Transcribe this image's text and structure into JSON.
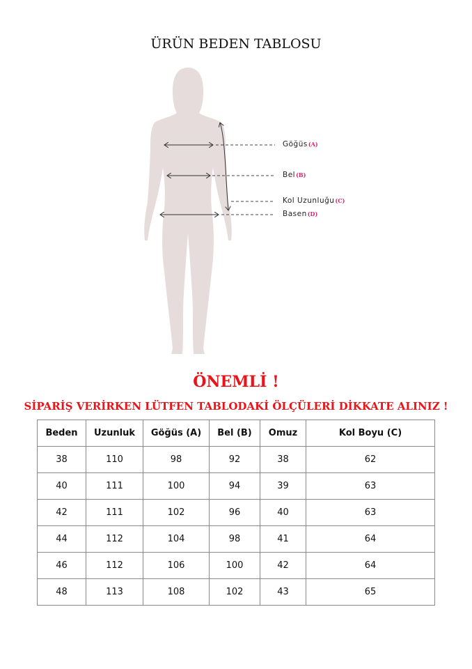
{
  "title": "ÜRÜN BEDEN TABLOSU",
  "figure": {
    "labels": [
      {
        "name": "Göğüs",
        "key": "(A)"
      },
      {
        "name": "Bel",
        "key": "(B)"
      },
      {
        "name": "Kol Uzunluğu",
        "key": "(C)"
      },
      {
        "name": "Basen",
        "key": "(D)"
      }
    ],
    "silhouette_color": "#e6dcdc",
    "key_color": "#d6246e"
  },
  "important": "ÖNEMLİ !",
  "warning": "SİPARİŞ VERİRKEN LÜTFEN TABLODAKİ ÖLÇÜLERİ DİKKATE ALINIZ !",
  "accent_color": "#e8141a",
  "table": {
    "headers": [
      "Beden",
      "Uzunluk",
      "Göğüs (A)",
      "Bel (B)",
      "Omuz",
      "Kol Boyu (C)"
    ],
    "rows": [
      [
        "38",
        "110",
        "98",
        "92",
        "38",
        "62"
      ],
      [
        "40",
        "111",
        "100",
        "94",
        "39",
        "63"
      ],
      [
        "42",
        "111",
        "102",
        "96",
        "40",
        "63"
      ],
      [
        "44",
        "112",
        "104",
        "98",
        "41",
        "64"
      ],
      [
        "46",
        "112",
        "106",
        "100",
        "42",
        "64"
      ],
      [
        "48",
        "113",
        "108",
        "102",
        "43",
        "65"
      ]
    ]
  }
}
